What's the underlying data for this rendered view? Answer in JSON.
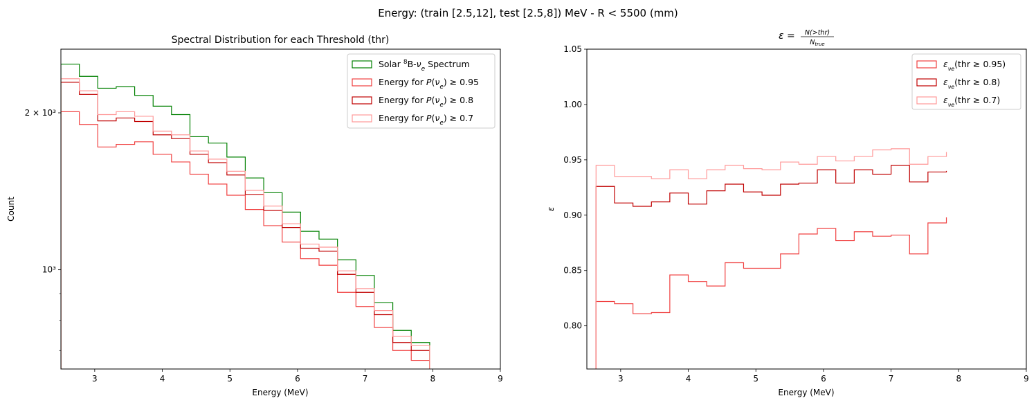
{
  "figure": {
    "suptitle": "Energy: (train [2.5,12], test [2.5,8]) MeV - R < 5500 (mm)"
  },
  "chart_data": [
    {
      "type": "step",
      "title": "Spectral Distribution for each Threshold (thr)",
      "xlabel": "Energy (MeV)",
      "ylabel": "Count",
      "yscale": "log",
      "xlim": [
        2.5,
        9
      ],
      "ylim": [
        645,
        2650
      ],
      "x_ticks": [
        3,
        4,
        5,
        6,
        7,
        8,
        9
      ],
      "x_tick_labels": [
        "3",
        "4",
        "5",
        "6",
        "7",
        "8",
        "9"
      ],
      "y_ticks": [
        1000,
        2000
      ],
      "y_tick_labels": [
        "10³",
        "2 × 10³"
      ],
      "y_minor_ticks": [
        700,
        800,
        900
      ],
      "legend_position": "top-right",
      "bin_edges": [
        2.5,
        2.773,
        3.045,
        3.318,
        3.591,
        3.864,
        4.136,
        4.409,
        4.682,
        4.955,
        5.227,
        5.5,
        5.773,
        6.045,
        6.318,
        6.591,
        6.864,
        7.136,
        7.409,
        7.682,
        7.955
      ],
      "series": [
        {
          "name": "Solar 8B-νe Spectrum",
          "legend_parts": [
            "Solar ",
            "8",
            "B-",
            "ν",
            "e",
            " Spectrum"
          ],
          "color": "#008000",
          "values": [
            2480,
            2350,
            2230,
            2245,
            2160,
            2060,
            1985,
            1800,
            1750,
            1645,
            1500,
            1405,
            1290,
            1185,
            1145,
            1045,
            975,
            865,
            765,
            725
          ]
        },
        {
          "name": "Energy for P(νe) ≥ 0.95",
          "legend_parts": [
            "Energy for ",
            "P",
            "(",
            "ν",
            "e",
            ") ≥  0.95"
          ],
          "color": "#f04040",
          "values": [
            2010,
            1900,
            1720,
            1740,
            1760,
            1665,
            1610,
            1525,
            1460,
            1390,
            1305,
            1215,
            1130,
            1050,
            1020,
            905,
            850,
            775,
            700,
            670
          ]
        },
        {
          "name": "Energy for P(νe) ≥ 0.8",
          "legend_parts": [
            "Energy for ",
            "P",
            "(",
            "ν",
            "e",
            ") ≥  0.8"
          ],
          "color": "#c00000",
          "values": [
            2290,
            2170,
            1930,
            1955,
            1925,
            1815,
            1785,
            1665,
            1605,
            1520,
            1395,
            1300,
            1205,
            1100,
            1085,
            980,
            905,
            820,
            725,
            700
          ]
        },
        {
          "name": "Energy for P(νe) ≥ 0.7",
          "legend_parts": [
            "Energy for ",
            "P",
            "(",
            "ν",
            "e",
            ") ≥  0.7"
          ],
          "color": "#ff9999",
          "values": [
            2325,
            2205,
            1985,
            2010,
            1970,
            1845,
            1815,
            1690,
            1630,
            1545,
            1420,
            1325,
            1225,
            1120,
            1105,
            995,
            920,
            835,
            745,
            715
          ]
        }
      ]
    },
    {
      "type": "step",
      "title": "ε = N(>thr) / N_true",
      "title_parts": [
        "ε",
        " = ",
        "N(>thr)",
        "N",
        "true"
      ],
      "xlabel": "Energy (MeV)",
      "ylabel": "ε",
      "xlim": [
        2.5,
        9
      ],
      "ylim": [
        0.761,
        1.05
      ],
      "x_ticks": [
        3,
        4,
        5,
        6,
        7,
        8,
        9
      ],
      "x_tick_labels": [
        "3",
        "4",
        "5",
        "6",
        "7",
        "8",
        "9"
      ],
      "y_ticks": [
        0.8,
        0.85,
        0.9,
        0.95,
        1.0,
        1.05
      ],
      "y_tick_labels": [
        "0.80",
        "0.85",
        "0.90",
        "0.95",
        "1.00",
        "1.05"
      ],
      "legend_position": "top-right",
      "bin_edges": [
        2.636,
        2.909,
        3.182,
        3.455,
        3.727,
        4.0,
        4.273,
        4.545,
        4.818,
        5.091,
        5.364,
        5.636,
        5.909,
        6.182,
        6.455,
        6.727,
        7.0,
        7.273,
        7.545,
        7.818
      ],
      "series": [
        {
          "name": "ενe(thr ≥ 0.95)",
          "legend_parts": [
            "ε",
            "νe",
            "(thr ",
            "≥",
            " 0.95)"
          ],
          "color": "#f04040",
          "values": [
            0.822,
            0.82,
            0.811,
            0.812,
            0.846,
            0.84,
            0.836,
            0.857,
            0.852,
            0.852,
            0.865,
            0.883,
            0.888,
            0.877,
            0.885,
            0.881,
            0.882,
            0.865,
            0.893,
            0.898
          ]
        },
        {
          "name": "ενe(thr ≥ 0.8)",
          "legend_parts": [
            "ε",
            "νe",
            "(thr ",
            "≥",
            " 0.8)"
          ],
          "color": "#c00000",
          "values": [
            0.926,
            0.911,
            0.908,
            0.912,
            0.92,
            0.91,
            0.922,
            0.928,
            0.921,
            0.918,
            0.928,
            0.929,
            0.941,
            0.929,
            0.941,
            0.937,
            0.945,
            0.93,
            0.939,
            0.94
          ]
        },
        {
          "name": "ενe(thr ≥ 0.7)",
          "legend_parts": [
            "ε",
            "νe",
            "(thr ",
            "≥",
            " 0.7)"
          ],
          "color": "#ff9999",
          "values": [
            0.945,
            0.935,
            0.935,
            0.933,
            0.941,
            0.933,
            0.941,
            0.945,
            0.942,
            0.941,
            0.948,
            0.946,
            0.953,
            0.949,
            0.953,
            0.959,
            0.96,
            0.946,
            0.953,
            0.957
          ]
        }
      ]
    }
  ]
}
